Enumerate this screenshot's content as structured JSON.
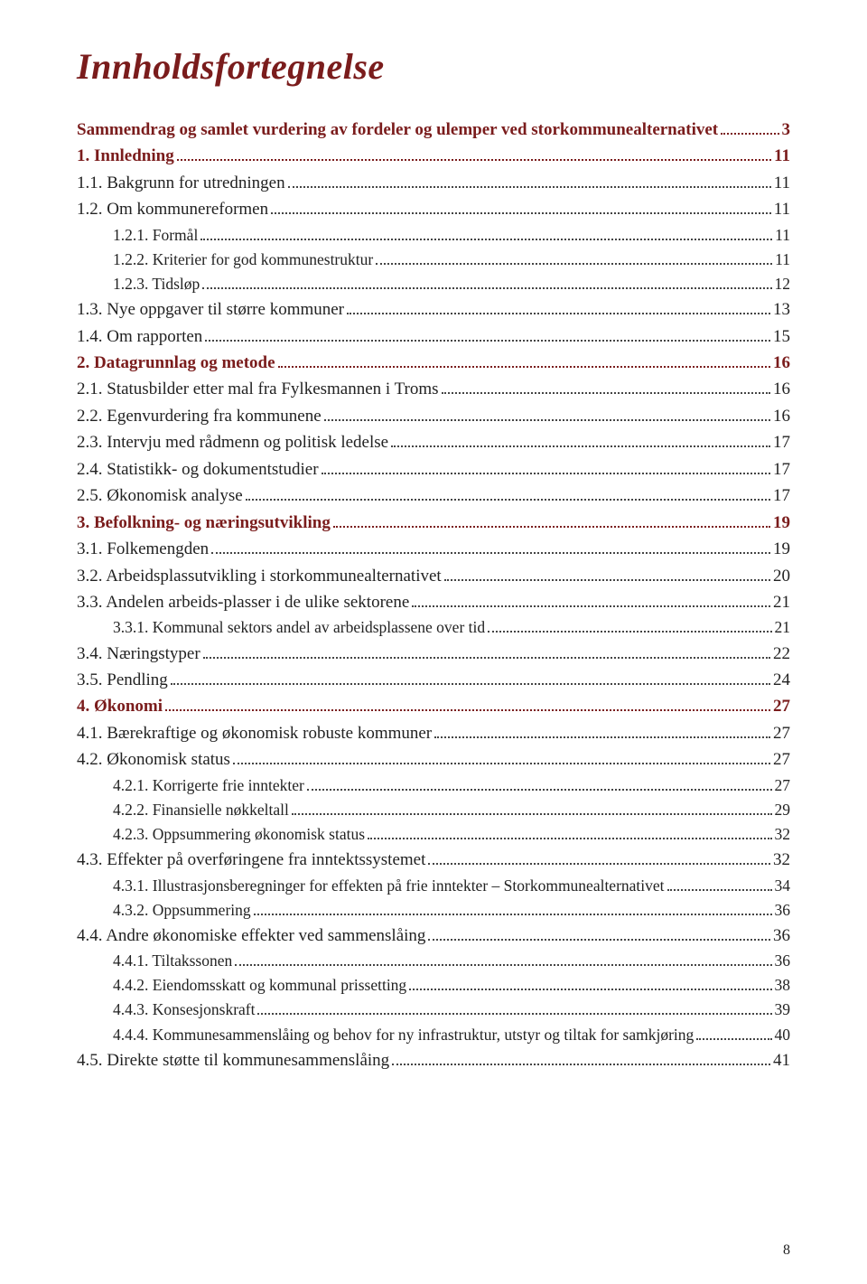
{
  "title": "Innholdsfortegnelse",
  "page_number": "8",
  "colors": {
    "heading": "#7a1c1c",
    "body": "#222222",
    "background": "#ffffff",
    "leader": "#444444"
  },
  "typography": {
    "title_fontsize": 40,
    "body_fontsize": 18,
    "sub_fontsize": 17.5,
    "font_family": "Georgia, Times New Roman, serif"
  },
  "entries": [
    {
      "level": 0,
      "style": "head-0",
      "label": "Sammendrag og samlet vurdering  av fordeler og ulemper ved storkommunealternativet",
      "page": "3"
    },
    {
      "level": 0,
      "style": "head-0",
      "label": "1. Innledning",
      "page": "11"
    },
    {
      "level": 1,
      "style": "head-1",
      "label": "1.1. Bakgrunn for utredningen",
      "page": "11"
    },
    {
      "level": 1,
      "style": "head-1",
      "label": "1.2. Om kommunereformen",
      "page": "11"
    },
    {
      "level": 2,
      "style": "head-2",
      "label": "1.2.1. Formål",
      "page": "11"
    },
    {
      "level": 2,
      "style": "head-2",
      "label": "1.2.2. Kriterier for god kommunestruktur",
      "page": "11"
    },
    {
      "level": 2,
      "style": "head-2",
      "label": "1.2.3. Tidsløp",
      "page": "12"
    },
    {
      "level": 1,
      "style": "head-1",
      "label": "1.3. Nye oppgaver til større kommuner",
      "page": "13"
    },
    {
      "level": 1,
      "style": "head-1",
      "label": "1.4. Om rapporten",
      "page": "15"
    },
    {
      "level": 0,
      "style": "head-0",
      "label": "2. Datagrunnlag og metode",
      "page": "16"
    },
    {
      "level": 1,
      "style": "head-1",
      "label": "2.1. Statusbilder etter mal fra Fylkesmannen i Troms",
      "page": "16"
    },
    {
      "level": 1,
      "style": "head-1",
      "label": "2.2. Egenvurdering fra kommunene",
      "page": "16"
    },
    {
      "level": 1,
      "style": "head-1",
      "label": "2.3. Intervju med rådmenn og politisk ledelse",
      "page": "17"
    },
    {
      "level": 1,
      "style": "head-1",
      "label": "2.4. Statistikk- og dokumentstudier",
      "page": "17"
    },
    {
      "level": 1,
      "style": "head-1",
      "label": "2.5. Økonomisk analyse",
      "page": "17"
    },
    {
      "level": 0,
      "style": "head-0",
      "label": "3. Befolkning- og næringsutvikling",
      "page": "19"
    },
    {
      "level": 1,
      "style": "head-1",
      "label": "3.1. Folkemengden",
      "page": "19"
    },
    {
      "level": 1,
      "style": "head-1",
      "label": "3.2. Arbeidsplassutvikling i storkommunealternativet",
      "page": "20"
    },
    {
      "level": 1,
      "style": "head-1",
      "label": "3.3. Andelen arbeids-plasser i de ulike sektorene",
      "page": "21"
    },
    {
      "level": 2,
      "style": "head-2",
      "label": "3.3.1. Kommunal sektors andel av arbeidsplassene over tid",
      "page": "21"
    },
    {
      "level": 1,
      "style": "head-1",
      "label": "3.4. Næringstyper",
      "page": "22"
    },
    {
      "level": 1,
      "style": "head-1",
      "label": "3.5. Pendling",
      "page": "24"
    },
    {
      "level": 0,
      "style": "head-0",
      "label": "4. Økonomi",
      "page": "27"
    },
    {
      "level": 1,
      "style": "head-1",
      "label": "4.1. Bærekraftige og økonomisk robuste kommuner",
      "page": "27"
    },
    {
      "level": 1,
      "style": "head-1",
      "label": "4.2. Økonomisk status",
      "page": "27"
    },
    {
      "level": 2,
      "style": "head-2",
      "label": "4.2.1. Korrigerte frie inntekter",
      "page": "27"
    },
    {
      "level": 2,
      "style": "head-2",
      "label": "4.2.2. Finansielle nøkkeltall",
      "page": "29"
    },
    {
      "level": 2,
      "style": "head-2",
      "label": "4.2.3. Oppsummering økonomisk status",
      "page": "32"
    },
    {
      "level": 1,
      "style": "head-1",
      "label": "4.3. Effekter på overføringene fra inntektssystemet",
      "page": "32"
    },
    {
      "level": 2,
      "style": "head-2",
      "label": "4.3.1. Illustrasjonsberegninger for effekten på frie inntekter  – Storkommunealternativet",
      "page": "34"
    },
    {
      "level": 2,
      "style": "head-2",
      "label": "4.3.2. Oppsummering",
      "page": "36"
    },
    {
      "level": 1,
      "style": "head-1",
      "label": "4.4. Andre økonomiske effekter ved sammenslåing",
      "page": "36"
    },
    {
      "level": 2,
      "style": "head-2",
      "label": "4.4.1. Tiltakssonen",
      "page": "36"
    },
    {
      "level": 2,
      "style": "head-2",
      "label": "4.4.2. Eiendomsskatt og kommunal prissetting",
      "page": "38"
    },
    {
      "level": 2,
      "style": "head-2",
      "label": "4.4.3. Konsesjonskraft",
      "page": "39"
    },
    {
      "level": 2,
      "style": "head-2",
      "label": "4.4.4. Kommunesammenslåing og behov for  ny infrastruktur, utstyr og tiltak for samkjøring",
      "page": "40"
    },
    {
      "level": 1,
      "style": "head-1",
      "label": "4.5. Direkte støtte til kommunesammenslåing",
      "page": "41"
    }
  ]
}
